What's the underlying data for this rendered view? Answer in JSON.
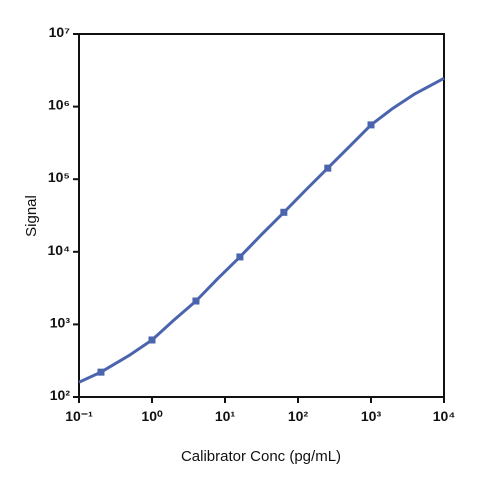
{
  "chart_data": {
    "type": "scatter",
    "xlabel": "Calibrator Conc (pg/mL)",
    "ylabel": "Signal",
    "xscale": "log",
    "yscale": "log",
    "xlim": [
      0.1,
      10000
    ],
    "ylim": [
      100,
      10000000
    ],
    "xticks": [
      {
        "value": 0.1,
        "label": "10⁻¹"
      },
      {
        "value": 1,
        "label": "10⁰"
      },
      {
        "value": 10,
        "label": "10¹"
      },
      {
        "value": 100,
        "label": "10²"
      },
      {
        "value": 1000,
        "label": "10³"
      },
      {
        "value": 10000,
        "label": "10⁴"
      }
    ],
    "yticks": [
      {
        "value": 100,
        "label": "10²"
      },
      {
        "value": 1000,
        "label": "10³"
      },
      {
        "value": 10000,
        "label": "10⁴"
      },
      {
        "value": 100000,
        "label": "10⁵"
      },
      {
        "value": 1000000,
        "label": "10⁶"
      },
      {
        "value": 10000000,
        "label": "10⁷"
      }
    ],
    "series": [
      {
        "type": "scatter",
        "color": "#4a64ad",
        "x": [
          0.2,
          1,
          4,
          16,
          64,
          256,
          1000
        ],
        "values": [
          220,
          610,
          2100,
          8500,
          35000,
          142000,
          560000
        ]
      },
      {
        "type": "line",
        "color": "#4a64ad",
        "x": [
          0.1,
          0.2,
          0.5,
          1,
          2,
          4,
          8,
          16,
          32,
          64,
          128,
          256,
          512,
          1000,
          2000,
          4000,
          10000
        ],
        "values": [
          160,
          220,
          380,
          610,
          1150,
          2100,
          4300,
          8500,
          17500,
          35000,
          71000,
          142000,
          285000,
          560000,
          950000,
          1500000,
          2450000
        ]
      }
    ]
  }
}
